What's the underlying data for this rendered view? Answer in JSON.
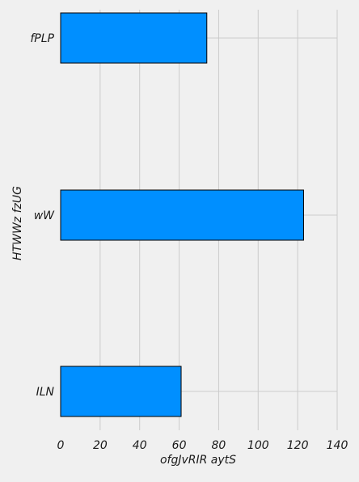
{
  "chart_data": {
    "type": "bar",
    "orientation": "horizontal",
    "categories": [
      "fPLP",
      "wW",
      "ILN"
    ],
    "values": [
      74,
      123,
      61
    ],
    "xlabel": "ofgJvRIR aytS",
    "ylabel": "HTWWz fzUG",
    "xlim": [
      0,
      140
    ],
    "xticks": [
      "0",
      "20",
      "40",
      "60",
      "80",
      "100",
      "120",
      "140"
    ],
    "grid": true,
    "bar_color": "#008fff",
    "bar_edge_color": "#000000"
  }
}
